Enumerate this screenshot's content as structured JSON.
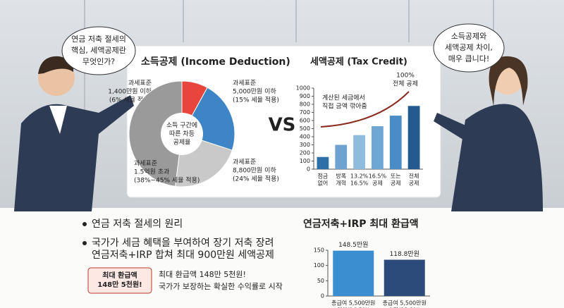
{
  "bubbles": {
    "left": [
      "연금 저축 절세의",
      "핵심, 세액공제란",
      "무엇인가?"
    ],
    "right": [
      "소득공제와",
      "세액공제 차이,",
      "매우 큽니다!"
    ]
  },
  "vs": "VS",
  "charts": [
    {
      "type": "pie",
      "title": "소득공제 (Income Deduction)",
      "center_label": [
        "소득 구간에",
        "따른 차등",
        "공제율"
      ],
      "categories": [
        [
          "과세표준",
          "1,400만원 이하",
          "(6% 세율 적용)"
        ],
        [
          "과세표준",
          "5,000만원 이하",
          "(15% 세율 적용)"
        ],
        [
          "과세표준",
          "8,800만원 이하",
          "(24% 세율 적용)"
        ],
        [
          "과세표준",
          "1.5억원 초과",
          "(38%~45% 세율 적용)"
        ]
      ],
      "values": [
        8,
        22,
        22,
        48
      ],
      "colors": [
        "#e8453c",
        "#3d85c6",
        "#c9c9c9",
        "#9a9a9a"
      ]
    },
    {
      "type": "bar",
      "title": "세액공제 (Tax Credit)",
      "annotation": [
        "계산된 세금에서",
        "직접 금액 깎아줌"
      ],
      "top_label": [
        "100%",
        "전체 공제"
      ],
      "categories": [
        [
          "점금",
          "없어"
        ],
        [
          "방폭",
          "개혁"
        ],
        [
          "13.2%",
          "16.5%"
        ],
        [
          "16.5%",
          "공제"
        ],
        [
          "또는",
          "공제"
        ],
        [
          "전체",
          "공제"
        ]
      ],
      "values": [
        150,
        300,
        420,
        530,
        660,
        780
      ],
      "colors": [
        "#2f6fa8",
        "#6fa3cf",
        "#8fbbdc",
        "#6ea7d4",
        "#4a8cc6",
        "#245a8f"
      ],
      "ylim": [
        0,
        1000
      ],
      "yticks": [
        0,
        100,
        200,
        300,
        400,
        500,
        600,
        700,
        800,
        900,
        1000
      ]
    },
    {
      "type": "bar",
      "title": "연금저축+IRP 최대 환급액",
      "categories": [
        [
          "총급여 5,500만원",
          "이하(16.5%)"
        ],
        [
          "총급여 5,500만원",
          "초과(13.2%)"
        ]
      ],
      "values": [
        148.5,
        118.8
      ],
      "value_labels": [
        "148.5만원",
        "118.8만원"
      ],
      "colors": [
        "#3b8fd0",
        "#2c4a7a"
      ],
      "ylim": [
        0,
        150
      ],
      "yticks": [
        0,
        50,
        100,
        150
      ]
    }
  ],
  "bullets": [
    "연금 저축 절세의 원리",
    "국가가 세금 혜택을 부여하여 장기 저축 장려",
    "연금저축+IRP 합쳐 최대 900만원 세액공제"
  ],
  "badge": [
    "최대 환급액",
    "148만 5천원!"
  ],
  "notes": [
    "최대 환급액 148만 5천원!",
    "국가가 보장하는 확실한 수익률로 시작"
  ]
}
